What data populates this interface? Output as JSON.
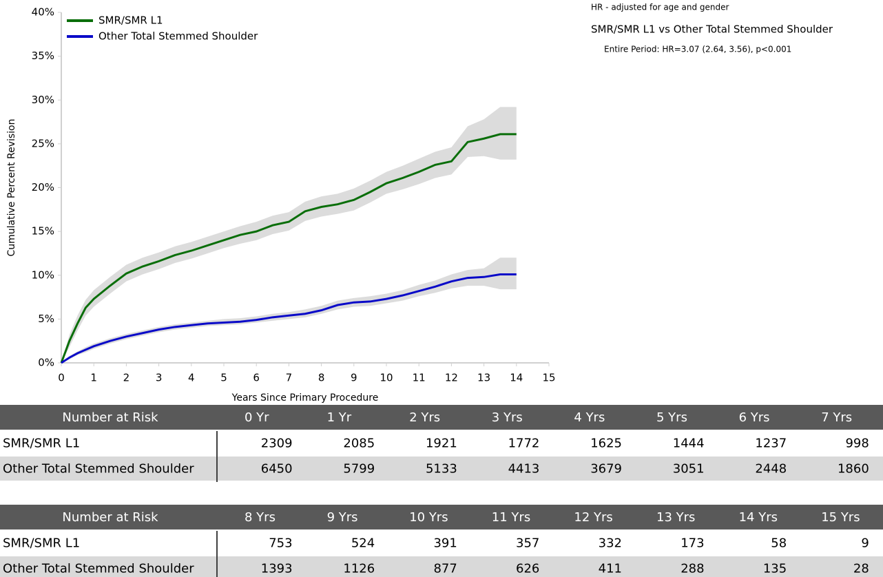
{
  "chart_data": {
    "type": "line",
    "y_label": "Cumulative Percent Revision",
    "x_label": "Years Since Primary Procedure",
    "annotations": [
      "HR - adjusted for age and gender",
      "SMR/SMR L1 vs Other Total Stemmed Shoulder",
      "Entire Period: HR=3.07 (2.64, 3.56), p<0.001"
    ],
    "x": [
      0,
      0.25,
      0.5,
      0.75,
      1,
      1.5,
      2,
      2.5,
      3,
      3.5,
      4,
      4.5,
      5,
      5.5,
      6,
      6.5,
      7,
      7.5,
      8,
      8.5,
      9,
      9.5,
      10,
      10.5,
      11,
      11.5,
      12,
      12.5,
      13,
      13.5,
      14
    ],
    "series": [
      {
        "name": "SMR/SMR L1",
        "color": "#0a6e0a",
        "band_color": "#dcdcdc",
        "values": [
          0,
          2.5,
          4.5,
          6.3,
          7.3,
          8.8,
          10.2,
          11,
          11.6,
          12.3,
          12.8,
          13.4,
          14,
          14.6,
          15,
          15.7,
          16.1,
          17.3,
          17.8,
          18.1,
          18.6,
          19.5,
          20.5,
          21.1,
          21.8,
          22.6,
          23,
          25.2,
          25.6,
          26.1,
          26.1
        ],
        "lower": [
          0,
          1.8,
          3.7,
          5.4,
          6.4,
          7.9,
          9.3,
          10.1,
          10.7,
          11.4,
          11.9,
          12.5,
          13.1,
          13.6,
          14,
          14.7,
          15.1,
          16.2,
          16.7,
          17,
          17.4,
          18.3,
          19.3,
          19.8,
          20.4,
          21.1,
          21.5,
          23.5,
          23.6,
          23.2,
          23.2
        ],
        "upper": [
          0,
          3.2,
          5.4,
          7.2,
          8.3,
          9.8,
          11.2,
          12,
          12.6,
          13.3,
          13.8,
          14.4,
          15,
          15.6,
          16.1,
          16.8,
          17.2,
          18.4,
          19,
          19.3,
          19.9,
          20.8,
          21.8,
          22.5,
          23.3,
          24.1,
          24.6,
          27,
          27.8,
          29.2,
          29.2
        ]
      },
      {
        "name": "Other Total Stemmed Shoulder",
        "color": "#0a0ac8",
        "band_color": "#dcdcdc",
        "values": [
          0,
          0.6,
          1.1,
          1.5,
          1.9,
          2.5,
          3,
          3.4,
          3.8,
          4.1,
          4.3,
          4.5,
          4.6,
          4.7,
          4.9,
          5.2,
          5.4,
          5.6,
          6,
          6.6,
          6.9,
          7,
          7.3,
          7.7,
          8.2,
          8.7,
          9.3,
          9.7,
          9.8,
          10.1,
          10.1
        ],
        "lower": [
          0,
          0.4,
          0.9,
          1.2,
          1.6,
          2.2,
          2.7,
          3.1,
          3.5,
          3.8,
          4,
          4.2,
          4.3,
          4.4,
          4.6,
          4.8,
          5,
          5.2,
          5.6,
          6.1,
          6.4,
          6.5,
          6.8,
          7.1,
          7.6,
          8,
          8.5,
          8.8,
          8.8,
          8.4,
          8.4
        ],
        "upper": [
          0,
          0.8,
          1.3,
          1.8,
          2.2,
          2.8,
          3.3,
          3.7,
          4.1,
          4.4,
          4.6,
          4.8,
          5,
          5.1,
          5.3,
          5.6,
          5.8,
          6.1,
          6.5,
          7.1,
          7.4,
          7.6,
          7.9,
          8.3,
          8.9,
          9.4,
          10.1,
          10.6,
          10.8,
          12,
          12
        ]
      }
    ],
    "xlim": [
      0,
      15
    ],
    "xticks": [
      0,
      1,
      2,
      3,
      4,
      5,
      6,
      7,
      8,
      9,
      10,
      11,
      12,
      13,
      14,
      15
    ],
    "ylim": [
      0,
      40
    ],
    "yticks": [
      {
        "value": 0,
        "label": "0%"
      },
      {
        "value": 5,
        "label": "5%"
      },
      {
        "value": 10,
        "label": "10%"
      },
      {
        "value": 15,
        "label": "15%"
      },
      {
        "value": 20,
        "label": "20%"
      },
      {
        "value": 25,
        "label": "25%"
      },
      {
        "value": 30,
        "label": "30%"
      },
      {
        "value": 35,
        "label": "35%"
      },
      {
        "value": 40,
        "label": "40%"
      }
    ],
    "legend": "top-left"
  },
  "tables": [
    {
      "header": [
        "Number at Risk",
        "0 Yr",
        "1 Yr",
        "2 Yrs",
        "3 Yrs",
        "4 Yrs",
        "5 Yrs",
        "6 Yrs",
        "7 Yrs"
      ],
      "rows": [
        [
          "SMR/SMR L1",
          2309,
          2085,
          1921,
          1772,
          1625,
          1444,
          1237,
          998
        ],
        [
          "Other Total Stemmed Shoulder",
          6450,
          5799,
          5133,
          4413,
          3679,
          3051,
          2448,
          1860
        ]
      ]
    },
    {
      "header": [
        "Number at Risk",
        "8 Yrs",
        "9 Yrs",
        "10 Yrs",
        "11 Yrs",
        "12 Yrs",
        "13 Yrs",
        "14 Yrs",
        "15 Yrs"
      ],
      "rows": [
        [
          "SMR/SMR L1",
          753,
          524,
          391,
          357,
          332,
          173,
          58,
          9
        ],
        [
          "Other Total Stemmed Shoulder",
          1393,
          1126,
          877,
          626,
          411,
          288,
          135,
          28
        ]
      ]
    }
  ]
}
